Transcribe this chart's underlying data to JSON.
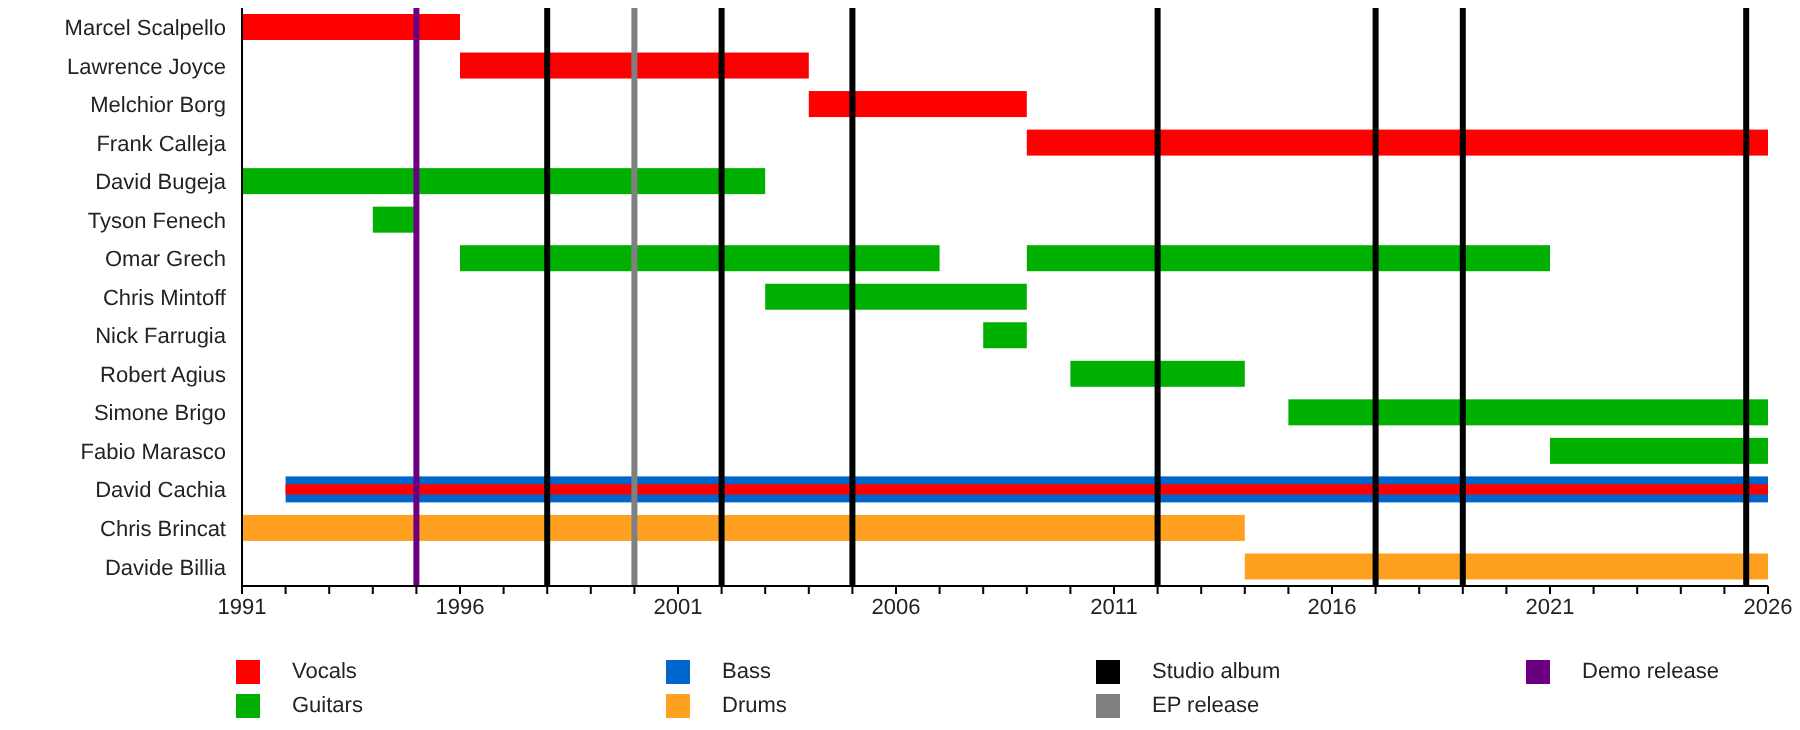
{
  "chart_data": {
    "type": "bar",
    "orientation": "horizontal",
    "legend": "bottom",
    "categories": [
      "Marcel Scalpello",
      "Lawrence Joyce",
      "Melchior Borg",
      "Frank Calleja",
      "David Bugeja",
      "Tyson Fenech",
      "Omar Grech",
      "Chris Mintoff",
      "Nick Farrugia",
      "Robert Agius",
      "Simone Brigo",
      "Fabio Marasco",
      "David Cachia",
      "Chris Brincat",
      "Davide Billia"
    ],
    "series": [
      {
        "name": "Vocals",
        "color": "#ff0000",
        "base": [
          1991,
          1996,
          2004,
          2009,
          null,
          null,
          null,
          null,
          null,
          null,
          null,
          null,
          1992,
          null,
          null
        ],
        "values": [
          5,
          8,
          5,
          17,
          null,
          null,
          null,
          null,
          null,
          null,
          null,
          null,
          34,
          null,
          null
        ]
      },
      {
        "name": "Guitars",
        "color": "#00b000",
        "base": [
          null,
          null,
          null,
          null,
          1991,
          1994,
          1996,
          2003,
          2008,
          2010,
          2015,
          2021,
          null,
          null,
          null
        ],
        "values": [
          null,
          null,
          null,
          null,
          12,
          1,
          11,
          6,
          1,
          4,
          11,
          5,
          null,
          null,
          null
        ]
      },
      {
        "color": "#00b000",
        "base": [
          null,
          null,
          null,
          null,
          null,
          null,
          2009,
          null,
          null,
          null,
          null,
          null,
          null,
          null,
          null
        ],
        "values": [
          null,
          null,
          null,
          null,
          null,
          null,
          12,
          null,
          null,
          null,
          null,
          null,
          null,
          null,
          null
        ]
      },
      {
        "name": "Bass",
        "color": "#0066cc",
        "base": [
          null,
          null,
          null,
          null,
          null,
          null,
          null,
          null,
          null,
          null,
          null,
          null,
          1992,
          null,
          null
        ],
        "values": [
          null,
          null,
          null,
          null,
          null,
          null,
          null,
          null,
          null,
          null,
          null,
          null,
          34,
          null,
          null
        ]
      },
      {
        "name": "Drums",
        "color": "#ffa020",
        "base": [
          null,
          null,
          null,
          null,
          null,
          null,
          null,
          null,
          null,
          null,
          null,
          null,
          null,
          1991,
          2014
        ],
        "values": [
          null,
          null,
          null,
          null,
          null,
          null,
          null,
          null,
          null,
          null,
          null,
          null,
          null,
          23,
          12
        ]
      }
    ],
    "ref_lines": [
      {
        "axis": "x",
        "value": 1998,
        "label": "Studio album",
        "color": "#000000"
      },
      {
        "axis": "x",
        "value": 2002,
        "color": "#000000"
      },
      {
        "axis": "x",
        "value": 2005,
        "color": "#000000"
      },
      {
        "axis": "x",
        "value": 2012,
        "color": "#000000"
      },
      {
        "axis": "x",
        "value": 2017,
        "color": "#000000"
      },
      {
        "axis": "x",
        "value": 2019,
        "color": "#000000"
      },
      {
        "axis": "x",
        "value": 2025.5,
        "color": "#000000"
      },
      {
        "axis": "x",
        "value": 2000,
        "label": "EP release",
        "color": "#808080"
      },
      {
        "axis": "x",
        "value": 1995,
        "label": "Demo release",
        "color": "#6a0080"
      }
    ],
    "xlim": [
      1991,
      2026
    ],
    "xticks": [
      1991,
      {
        "value": 1992,
        "label": null
      },
      {
        "value": 1993,
        "label": null
      },
      {
        "value": 1994,
        "label": null
      },
      {
        "value": 1995,
        "label": null
      },
      1996,
      {
        "value": 1997,
        "label": null
      },
      {
        "value": 1998,
        "label": null
      },
      {
        "value": 1999,
        "label": null
      },
      {
        "value": 2000,
        "label": null
      },
      2001,
      {
        "value": 2002,
        "label": null
      },
      {
        "value": 2003,
        "label": null
      },
      {
        "value": 2004,
        "label": null
      },
      {
        "value": 2005,
        "label": null
      },
      2006,
      {
        "value": 2007,
        "label": null
      },
      {
        "value": 2008,
        "label": null
      },
      {
        "value": 2009,
        "label": null
      },
      {
        "value": 2010,
        "label": null
      },
      2011,
      {
        "value": 2012,
        "label": null
      },
      {
        "value": 2013,
        "label": null
      },
      {
        "value": 2014,
        "label": null
      },
      {
        "value": 2015,
        "label": null
      },
      2016,
      {
        "value": 2017,
        "label": null
      },
      {
        "value": 2018,
        "label": null
      },
      {
        "value": 2019,
        "label": null
      },
      {
        "value": 2020,
        "label": null
      },
      2021,
      {
        "value": 2022,
        "label": null
      },
      {
        "value": 2023,
        "label": null
      },
      {
        "value": 2024,
        "label": null
      },
      {
        "value": 2025,
        "label": null
      },
      2026
    ]
  }
}
